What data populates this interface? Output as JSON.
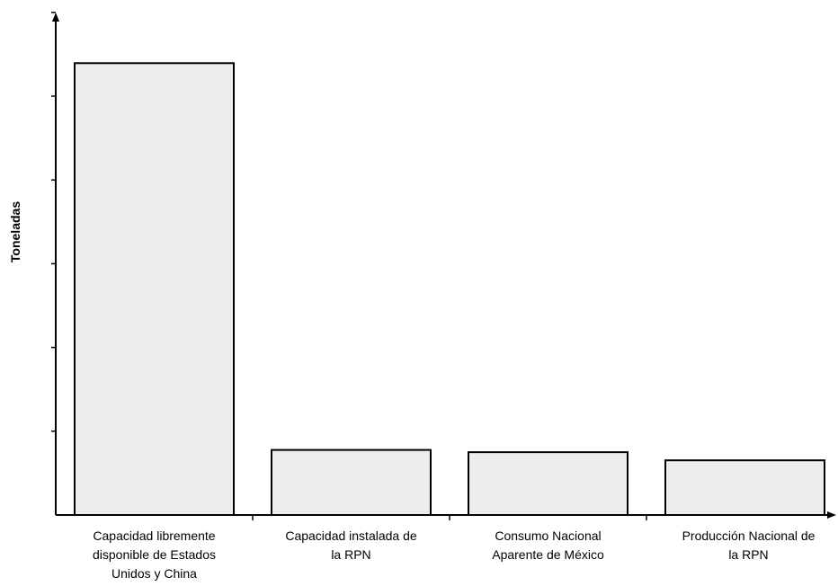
{
  "chart_data": {
    "type": "bar",
    "title": "",
    "xlabel": "",
    "ylabel": "Toneladas",
    "y_tick_labels_shown": false,
    "y_tick_count": 6,
    "ylim": [
      0,
      110
    ],
    "grid": false,
    "legend": "none",
    "bar_fill_color": "#ececec",
    "bar_stroke_color": "#000000",
    "categories": [
      {
        "name": "Capacidad libremente disponible de Estados Unidos y China",
        "lines": [
          "Capacidad libremente",
          "disponible de Estados",
          "Unidos y China"
        ]
      },
      {
        "name": "Capacidad instalada de la RPN",
        "lines": [
          "Capacidad instalada de",
          "la RPN"
        ]
      },
      {
        "name": "Consumo Nacional Aparente de México",
        "lines": [
          "Consumo Nacional",
          "Aparente de México"
        ]
      },
      {
        "name": "Producción Nacional de la RPN",
        "lines": [
          "Producción Nacional de",
          "la RPN"
        ]
      }
    ],
    "values": [
      100,
      14.4,
      13.9,
      12.1
    ]
  }
}
